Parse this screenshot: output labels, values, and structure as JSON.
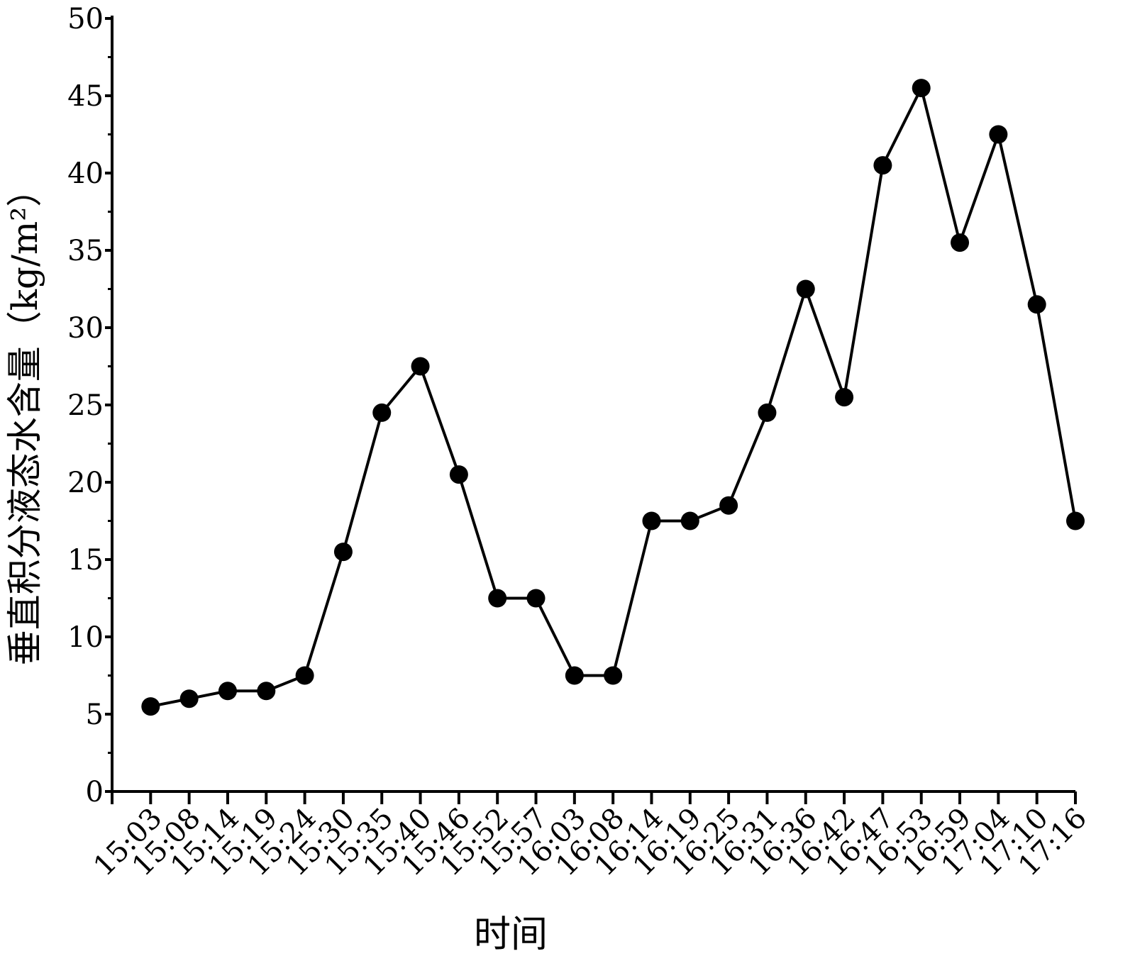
{
  "chart_data": {
    "type": "line",
    "x_label": "时间",
    "y_label": "垂直积分液态水含量（kg/m²）",
    "categories": [
      "15:03",
      "15:08",
      "15:14",
      "15:19",
      "15:24",
      "15:30",
      "15:35",
      "15:40",
      "15:46",
      "15:52",
      "15:57",
      "16:03",
      "16:08",
      "16:14",
      "16:19",
      "16:25",
      "16:31",
      "16:36",
      "16:42",
      "16:47",
      "16:53",
      "16:59",
      "17:04",
      "17:10",
      "17:16"
    ],
    "values": [
      5.5,
      6,
      6.5,
      6.5,
      7.5,
      15.5,
      24.5,
      27.5,
      20.5,
      12.5,
      12.5,
      7.5,
      7.5,
      17.5,
      17.5,
      18.5,
      24.5,
      32.5,
      25.5,
      40.5,
      45.5,
      35.5,
      42.5,
      31.5,
      17.5
    ],
    "color": "#000000",
    "ylim": [
      0,
      50
    ],
    "yticks": [
      0,
      5,
      10,
      15,
      20,
      25,
      30,
      35,
      40,
      45,
      50
    ],
    "grid": false
  }
}
